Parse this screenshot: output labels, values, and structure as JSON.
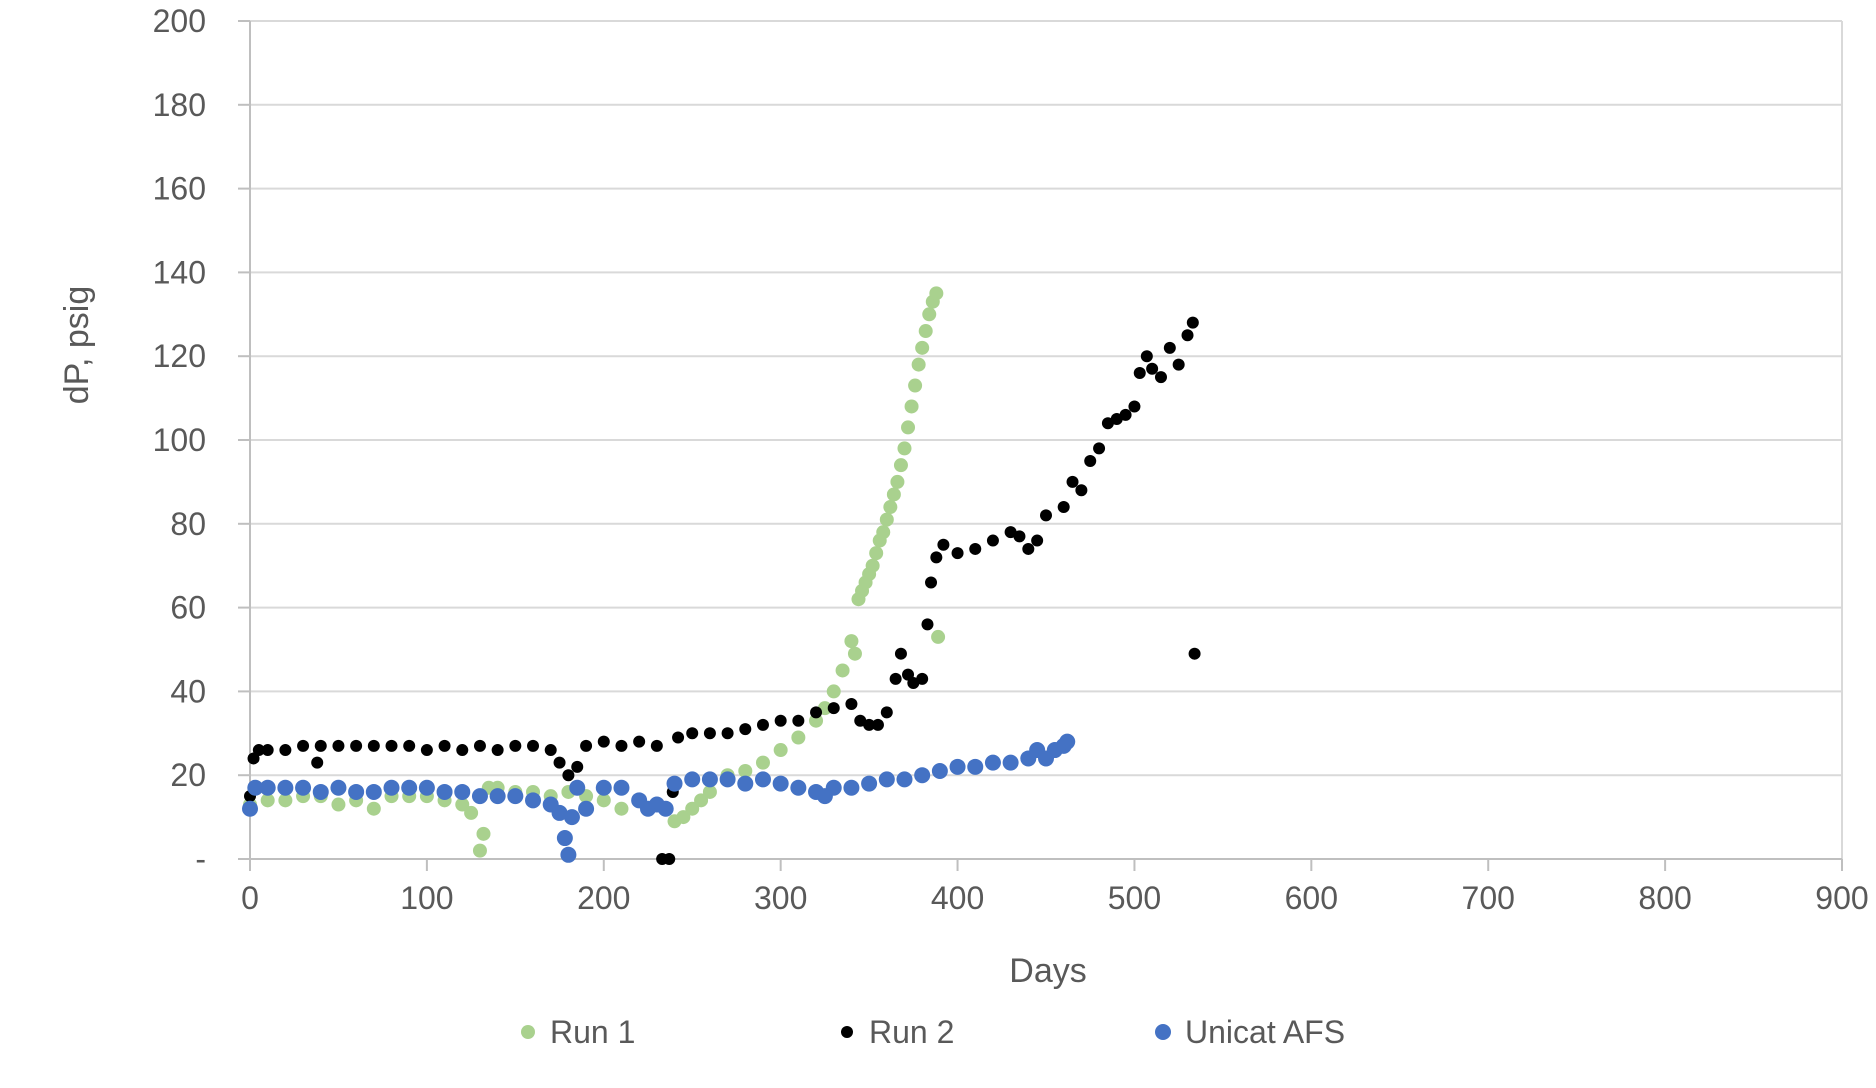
{
  "chart_data": {
    "type": "scatter",
    "title": "",
    "xlabel": "Days",
    "ylabel": "dP, psig",
    "xlim": [
      0,
      900
    ],
    "ylim": [
      0,
      200
    ],
    "x_ticks": [
      0,
      100,
      200,
      300,
      400,
      500,
      600,
      700,
      800,
      900
    ],
    "y_ticks": [
      0,
      20,
      40,
      60,
      80,
      100,
      120,
      140,
      160,
      180,
      200
    ],
    "x_tick_labels": [
      "0",
      "100",
      "200",
      "300",
      "400",
      "500",
      "600",
      "700",
      "800",
      "900"
    ],
    "y_tick_labels": [
      "-",
      "20",
      "40",
      "60",
      "80",
      "100",
      "120",
      "140",
      "160",
      "180",
      "200"
    ],
    "grid": {
      "horizontal": true,
      "vertical": false
    },
    "legend": {
      "position": "bottom"
    },
    "series": [
      {
        "name": "Run 1",
        "color": "#a9d18e",
        "points": [
          [
            0,
            13
          ],
          [
            10,
            14
          ],
          [
            20,
            14
          ],
          [
            30,
            15
          ],
          [
            40,
            15
          ],
          [
            50,
            13
          ],
          [
            60,
            14
          ],
          [
            70,
            12
          ],
          [
            80,
            15
          ],
          [
            90,
            15
          ],
          [
            100,
            15
          ],
          [
            110,
            14
          ],
          [
            120,
            13
          ],
          [
            125,
            11
          ],
          [
            130,
            2
          ],
          [
            132,
            6
          ],
          [
            135,
            17
          ],
          [
            140,
            17
          ],
          [
            150,
            16
          ],
          [
            160,
            16
          ],
          [
            170,
            15
          ],
          [
            180,
            16
          ],
          [
            190,
            15
          ],
          [
            200,
            14
          ],
          [
            210,
            12
          ],
          [
            220,
            14
          ],
          [
            230,
            13
          ],
          [
            240,
            9
          ],
          [
            245,
            10
          ],
          [
            250,
            12
          ],
          [
            255,
            14
          ],
          [
            260,
            16
          ],
          [
            270,
            20
          ],
          [
            280,
            21
          ],
          [
            290,
            23
          ],
          [
            300,
            26
          ],
          [
            310,
            29
          ],
          [
            320,
            33
          ],
          [
            325,
            36
          ],
          [
            330,
            40
          ],
          [
            335,
            45
          ],
          [
            340,
            52
          ],
          [
            342,
            49
          ],
          [
            344,
            62
          ],
          [
            346,
            64
          ],
          [
            348,
            66
          ],
          [
            350,
            68
          ],
          [
            352,
            70
          ],
          [
            354,
            73
          ],
          [
            356,
            76
          ],
          [
            358,
            78
          ],
          [
            360,
            81
          ],
          [
            362,
            84
          ],
          [
            364,
            87
          ],
          [
            366,
            90
          ],
          [
            368,
            94
          ],
          [
            370,
            98
          ],
          [
            372,
            103
          ],
          [
            374,
            108
          ],
          [
            376,
            113
          ],
          [
            378,
            118
          ],
          [
            380,
            122
          ],
          [
            382,
            126
          ],
          [
            384,
            130
          ],
          [
            386,
            133
          ],
          [
            388,
            135
          ],
          [
            389,
            53
          ]
        ]
      },
      {
        "name": "Run 2",
        "color": "#000000",
        "points": [
          [
            0,
            15
          ],
          [
            2,
            24
          ],
          [
            5,
            26
          ],
          [
            10,
            26
          ],
          [
            20,
            26
          ],
          [
            30,
            27
          ],
          [
            38,
            23
          ],
          [
            40,
            27
          ],
          [
            50,
            27
          ],
          [
            60,
            27
          ],
          [
            70,
            27
          ],
          [
            80,
            27
          ],
          [
            90,
            27
          ],
          [
            100,
            26
          ],
          [
            110,
            27
          ],
          [
            120,
            26
          ],
          [
            130,
            27
          ],
          [
            140,
            26
          ],
          [
            150,
            27
          ],
          [
            160,
            27
          ],
          [
            170,
            26
          ],
          [
            175,
            23
          ],
          [
            180,
            20
          ],
          [
            185,
            22
          ],
          [
            190,
            27
          ],
          [
            200,
            28
          ],
          [
            210,
            27
          ],
          [
            220,
            28
          ],
          [
            230,
            27
          ],
          [
            233,
            0
          ],
          [
            237,
            0
          ],
          [
            239,
            16
          ],
          [
            242,
            29
          ],
          [
            250,
            30
          ],
          [
            260,
            30
          ],
          [
            270,
            30
          ],
          [
            280,
            31
          ],
          [
            290,
            32
          ],
          [
            300,
            33
          ],
          [
            310,
            33
          ],
          [
            320,
            35
          ],
          [
            330,
            36
          ],
          [
            340,
            37
          ],
          [
            345,
            33
          ],
          [
            350,
            32
          ],
          [
            355,
            32
          ],
          [
            360,
            35
          ],
          [
            365,
            43
          ],
          [
            368,
            49
          ],
          [
            372,
            44
          ],
          [
            375,
            42
          ],
          [
            380,
            43
          ],
          [
            383,
            56
          ],
          [
            385,
            66
          ],
          [
            388,
            72
          ],
          [
            392,
            75
          ],
          [
            400,
            73
          ],
          [
            410,
            74
          ],
          [
            420,
            76
          ],
          [
            430,
            78
          ],
          [
            435,
            77
          ],
          [
            440,
            74
          ],
          [
            445,
            76
          ],
          [
            450,
            82
          ],
          [
            460,
            84
          ],
          [
            465,
            90
          ],
          [
            470,
            88
          ],
          [
            475,
            95
          ],
          [
            480,
            98
          ],
          [
            485,
            104
          ],
          [
            490,
            105
          ],
          [
            495,
            106
          ],
          [
            500,
            108
          ],
          [
            503,
            116
          ],
          [
            507,
            120
          ],
          [
            510,
            117
          ],
          [
            515,
            115
          ],
          [
            520,
            122
          ],
          [
            525,
            118
          ],
          [
            530,
            125
          ],
          [
            533,
            128
          ],
          [
            534,
            49
          ]
        ]
      },
      {
        "name": "Unicat AFS",
        "color": "#4472c4",
        "points": [
          [
            0,
            12
          ],
          [
            3,
            17
          ],
          [
            10,
            17
          ],
          [
            20,
            17
          ],
          [
            30,
            17
          ],
          [
            40,
            16
          ],
          [
            50,
            17
          ],
          [
            60,
            16
          ],
          [
            70,
            16
          ],
          [
            80,
            17
          ],
          [
            90,
            17
          ],
          [
            100,
            17
          ],
          [
            110,
            16
          ],
          [
            120,
            16
          ],
          [
            130,
            15
          ],
          [
            140,
            15
          ],
          [
            150,
            15
          ],
          [
            160,
            14
          ],
          [
            170,
            13
          ],
          [
            175,
            11
          ],
          [
            178,
            5
          ],
          [
            180,
            1
          ],
          [
            182,
            10
          ],
          [
            185,
            17
          ],
          [
            190,
            12
          ],
          [
            200,
            17
          ],
          [
            210,
            17
          ],
          [
            220,
            14
          ],
          [
            225,
            12
          ],
          [
            230,
            13
          ],
          [
            235,
            12
          ],
          [
            240,
            18
          ],
          [
            250,
            19
          ],
          [
            260,
            19
          ],
          [
            270,
            19
          ],
          [
            280,
            18
          ],
          [
            290,
            19
          ],
          [
            300,
            18
          ],
          [
            310,
            17
          ],
          [
            320,
            16
          ],
          [
            325,
            15
          ],
          [
            330,
            17
          ],
          [
            340,
            17
          ],
          [
            350,
            18
          ],
          [
            360,
            19
          ],
          [
            370,
            19
          ],
          [
            380,
            20
          ],
          [
            390,
            21
          ],
          [
            400,
            22
          ],
          [
            410,
            22
          ],
          [
            420,
            23
          ],
          [
            430,
            23
          ],
          [
            440,
            24
          ],
          [
            445,
            26
          ],
          [
            450,
            24
          ],
          [
            455,
            26
          ],
          [
            460,
            27
          ],
          [
            462,
            28
          ]
        ]
      }
    ]
  }
}
